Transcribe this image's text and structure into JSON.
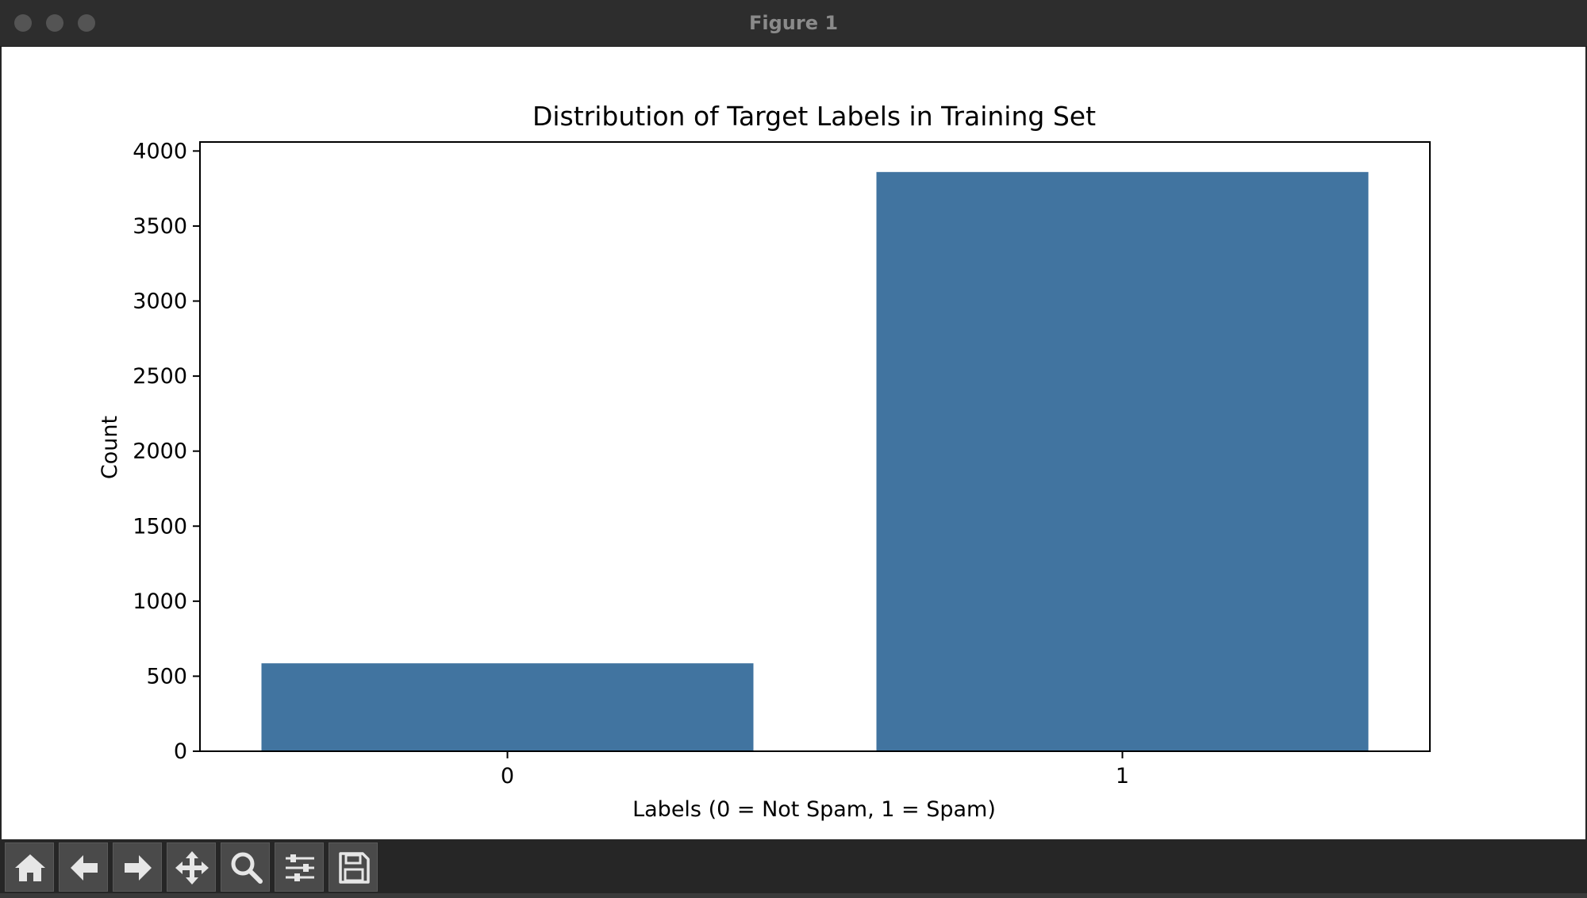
{
  "window": {
    "title": "Figure 1"
  },
  "toolbar": {
    "buttons": [
      {
        "icon": "home-icon"
      },
      {
        "icon": "back-arrow-icon"
      },
      {
        "icon": "forward-arrow-icon"
      },
      {
        "icon": "pan-move-icon"
      },
      {
        "icon": "zoom-magnifier-icon"
      },
      {
        "icon": "configure-subplots-icon"
      },
      {
        "icon": "save-floppy-icon"
      }
    ]
  },
  "colors": {
    "bar": "#4174a0",
    "titlebar": "#2d2d2d",
    "toolbar": "#262626"
  },
  "chart_data": {
    "type": "bar",
    "title": "Distribution of Target Labels in Training Set",
    "xlabel": "Labels (0 = Not Spam, 1 = Spam)",
    "ylabel": "Count",
    "categories": [
      "0",
      "1"
    ],
    "values": [
      586,
      3860
    ],
    "ylim": [
      0,
      4060
    ],
    "yticks": [
      0,
      500,
      1000,
      1500,
      2000,
      2500,
      3000,
      3500,
      4000
    ],
    "grid": false,
    "legend": "none"
  }
}
